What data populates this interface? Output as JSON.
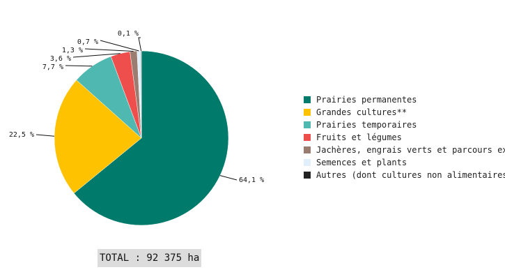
{
  "chart_data": {
    "type": "pie",
    "slices": [
      {
        "label": "Prairies permanentes",
        "value": 64.1,
        "display": "64,1 %",
        "color": "#007a6a"
      },
      {
        "label": "Grandes cultures**",
        "value": 22.5,
        "display": "22,5 %",
        "color": "#ffc200"
      },
      {
        "label": "Prairies temporaires",
        "value": 7.7,
        "display": "7,7 %",
        "color": "#4fb8b0"
      },
      {
        "label": "Fruits et légumes",
        "value": 3.6,
        "display": "3,6 %",
        "color": "#ee4f4c"
      },
      {
        "label": "Jachères, engrais verts et parcours ex",
        "value": 1.3,
        "display": "1,3 %",
        "color": "#9a7c70"
      },
      {
        "label": "Semences et plants",
        "value": 0.7,
        "display": "0,7 %",
        "color": "#e0effa"
      },
      {
        "label": "Autres (dont cultures non alimentaires",
        "value": 0.1,
        "display": "0,1 %",
        "color": "#222222"
      }
    ],
    "legend_position": "right"
  },
  "total_text": "TOTAL : 92 375 ha"
}
